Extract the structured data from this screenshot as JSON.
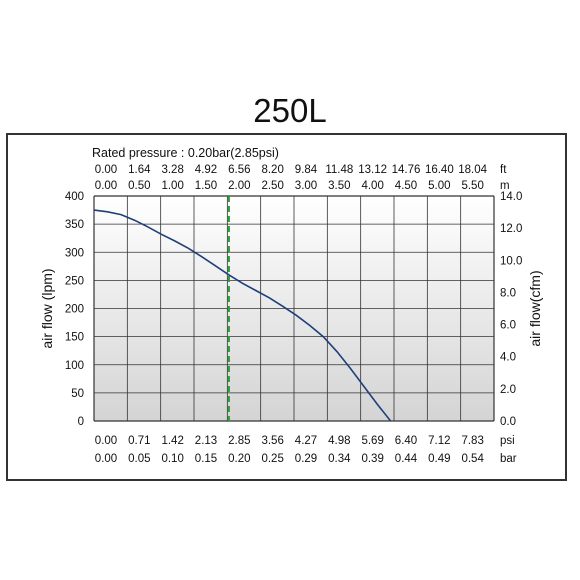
{
  "title": "250L",
  "rated_pressure": "Rated pressure : 0.20bar(2.85psi)",
  "colors": {
    "curve": "#1f3f7a",
    "rated_line": "#2e9e3a",
    "grid": "#333333"
  },
  "chart_data": {
    "type": "line",
    "title": "250L",
    "xlabel": "",
    "ylabel": "air flow (lpm)",
    "ylabel_right": "air flow(cfm)",
    "grid": true,
    "x_ticks_bottom_psi": [
      "0.00",
      "0.71",
      "1.42",
      "2.13",
      "2.85",
      "3.56",
      "4.27",
      "4.98",
      "5.69",
      "6.40",
      "7.12",
      "7.83"
    ],
    "x_unit_psi": "psi",
    "x_ticks_bottom_bar": [
      "0.00",
      "0.05",
      "0.10",
      "0.15",
      "0.20",
      "0.25",
      "0.29",
      "0.34",
      "0.39",
      "0.44",
      "0.49",
      "0.54"
    ],
    "x_unit_bar": "bar",
    "x_ticks_top_ft": [
      "0.00",
      "1.64",
      "3.28",
      "4.92",
      "6.56",
      "8.20",
      "9.84",
      "11.48",
      "13.12",
      "14.76",
      "16.40",
      "18.04"
    ],
    "x_unit_ft": "ft",
    "x_ticks_top_m": [
      "0.00",
      "0.50",
      "1.00",
      "1.50",
      "2.00",
      "2.50",
      "3.00",
      "3.50",
      "4.00",
      "4.50",
      "5.00",
      "5.50"
    ],
    "x_unit_m": "m",
    "y_ticks_left": [
      "400",
      "350",
      "300",
      "250",
      "200",
      "150",
      "100",
      "50",
      "0"
    ],
    "y_ticks_right": [
      "14.0",
      "12.0",
      "10.0",
      "8.0",
      "6.0",
      "4.0",
      "2.0",
      "0.0"
    ],
    "xlim_bar": [
      0,
      0.5933
    ],
    "ylim": [
      0,
      400
    ],
    "y_right_lim": [
      0,
      14.0
    ],
    "rated_pressure_bar": 0.2,
    "series": [
      {
        "x": [
          0.0,
          0.02,
          0.04,
          0.06,
          0.08,
          0.1,
          0.12,
          0.14,
          0.16,
          0.18,
          0.2,
          0.22,
          0.24,
          0.26,
          0.28,
          0.3,
          0.32,
          0.34,
          0.36,
          0.38,
          0.4,
          0.42,
          0.44
        ],
        "y": [
          375,
          372,
          367,
          357,
          345,
          332,
          320,
          307,
          292,
          276,
          260,
          245,
          232,
          219,
          204,
          188,
          170,
          150,
          124,
          94,
          62,
          30,
          0
        ]
      }
    ]
  }
}
